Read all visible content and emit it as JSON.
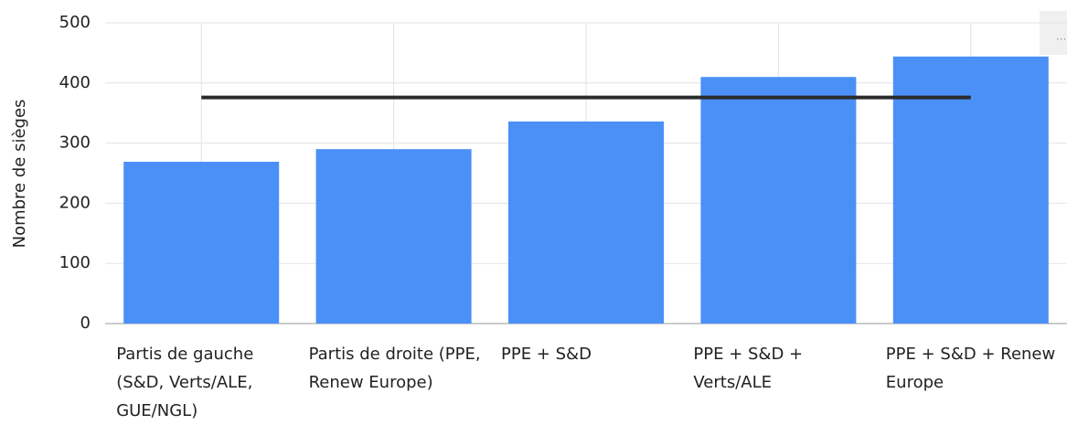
{
  "chart_data": {
    "type": "bar",
    "y_label": "Nombre de sièges",
    "categories": [
      "Partis de gauche (S&D, Verts/ALE, GUE/NGL)",
      "Partis de droite (PPE, Renew Europe)",
      "PPE + S&D",
      "PPE + S&D + Verts/ALE",
      "PPE + S&D + Renew Europe"
    ],
    "series": [
      {
        "type": "bar",
        "color": "#4a90f7",
        "values": [
          269,
          290,
          336,
          410,
          444
        ]
      },
      {
        "type": "line",
        "color": "#2b2b2b",
        "values": [
          376,
          376,
          376,
          376,
          376
        ]
      }
    ],
    "ylim": [
      0,
      500
    ],
    "yticks": [
      0,
      100,
      200,
      300,
      400,
      500
    ],
    "grid": true
  }
}
